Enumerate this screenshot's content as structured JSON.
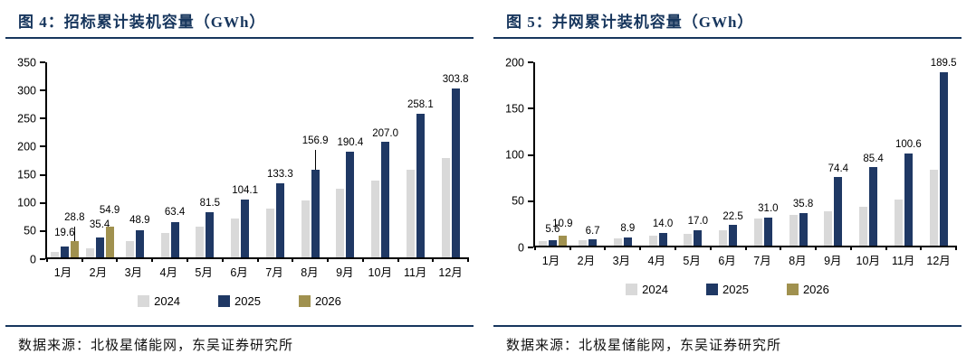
{
  "colors": {
    "accent": "#17365d",
    "axis": "#000000",
    "series": {
      "2024": "#d9d9d9",
      "2025": "#1f3864",
      "2026": "#a0914f"
    }
  },
  "panels": [
    {
      "title": "图 4：招标累计装机容量（GWh）",
      "source": "数据来源：北极星储能网，东吴证券研究所"
    },
    {
      "title": "图 5：并网累计装机容量（GWh）",
      "source": "数据来源：北极星储能网，东吴证券研究所"
    }
  ],
  "chart_data": [
    {
      "type": "bar",
      "title": "图 4：招标累计装机容量（GWh）",
      "categories": [
        "1月",
        "2月",
        "3月",
        "4月",
        "5月",
        "6月",
        "7月",
        "8月",
        "9月",
        "10月",
        "11月",
        "12月"
      ],
      "ylim": [
        0,
        350
      ],
      "yticks": [
        0,
        50,
        100,
        150,
        200,
        250,
        300,
        350
      ],
      "grid": false,
      "legend_position": "bottom",
      "legend": [
        "2024",
        "2025",
        "2026"
      ],
      "series": [
        {
          "name": "2024",
          "estimated": true,
          "values": [
            10,
            16,
            30,
            44,
            55,
            69,
            88,
            102,
            123,
            138,
            157,
            179
          ],
          "labels": null
        },
        {
          "name": "2025",
          "values": [
            19.6,
            35.4,
            48.9,
            63.4,
            81.5,
            104.1,
            133.3,
            156.9,
            190.4,
            207.0,
            258.1,
            303.8
          ],
          "labels": [
            "19.6",
            "35.4",
            "48.9",
            "63.4",
            "81.5",
            "104.1",
            "133.3",
            "156.9",
            "190.4",
            "207.0",
            "258.1",
            "303.8"
          ],
          "label_dy": [
            8,
            8,
            4,
            4,
            3,
            3,
            3,
            26,
            3,
            3,
            3,
            3
          ],
          "label_leader": [
            false,
            false,
            false,
            false,
            false,
            false,
            false,
            true,
            false,
            false,
            false,
            false
          ]
        },
        {
          "name": "2026",
          "values": [
            28.8,
            54.9,
            null,
            null,
            null,
            null,
            null,
            null,
            null,
            null,
            null,
            null
          ],
          "labels": [
            "28.8",
            "54.9",
            null,
            null,
            null,
            null,
            null,
            null,
            null,
            null,
            null,
            null
          ],
          "label_dy": [
            20,
            12,
            0,
            0,
            0,
            0,
            0,
            0,
            0,
            0,
            0,
            0
          ],
          "label_leader": [
            true,
            false,
            false,
            false,
            false,
            false,
            false,
            false,
            false,
            false,
            false,
            false
          ]
        }
      ]
    },
    {
      "type": "bar",
      "title": "图 5：并网累计装机容量（GWh）",
      "categories": [
        "1月",
        "2月",
        "3月",
        "4月",
        "5月",
        "6月",
        "7月",
        "8月",
        "9月",
        "10月",
        "11月",
        "12月"
      ],
      "ylim": [
        0,
        200
      ],
      "yticks": [
        0,
        50,
        100,
        150,
        200
      ],
      "grid": false,
      "legend_position": "bottom",
      "legend": [
        "2024",
        "2025",
        "2026"
      ],
      "series": [
        {
          "name": "2024",
          "estimated": true,
          "values": [
            5,
            6,
            7.5,
            10.5,
            12.5,
            16.5,
            30,
            34,
            37,
            42,
            50,
            83
          ],
          "labels": null
        },
        {
          "name": "2025",
          "values": [
            5.6,
            6.7,
            8.9,
            14.0,
            17.0,
            22.5,
            31.0,
            35.8,
            74.4,
            85.4,
            100.6,
            189.5
          ],
          "labels": [
            "5.6",
            "6.7",
            "8.9",
            "14.0",
            "17.0",
            "22.5",
            "31.0",
            "35.8",
            "74.4",
            "85.4",
            "100.6",
            "189.5"
          ],
          "label_dy": [
            6,
            3,
            3,
            3,
            3,
            3,
            3,
            3,
            3,
            3,
            3,
            3
          ],
          "label_leader": [
            false,
            false,
            false,
            false,
            false,
            false,
            false,
            false,
            false,
            false,
            false,
            false
          ]
        },
        {
          "name": "2026",
          "values": [
            10.9,
            null,
            null,
            null,
            null,
            null,
            null,
            null,
            null,
            null,
            null,
            null
          ],
          "labels": [
            "10.9",
            null,
            null,
            null,
            null,
            null,
            null,
            null,
            null,
            null,
            null,
            null
          ],
          "label_dy": [
            6,
            0,
            0,
            0,
            0,
            0,
            0,
            0,
            0,
            0,
            0,
            0
          ],
          "label_leader": [
            false,
            false,
            false,
            false,
            false,
            false,
            false,
            false,
            false,
            false,
            false,
            false
          ]
        }
      ]
    }
  ]
}
